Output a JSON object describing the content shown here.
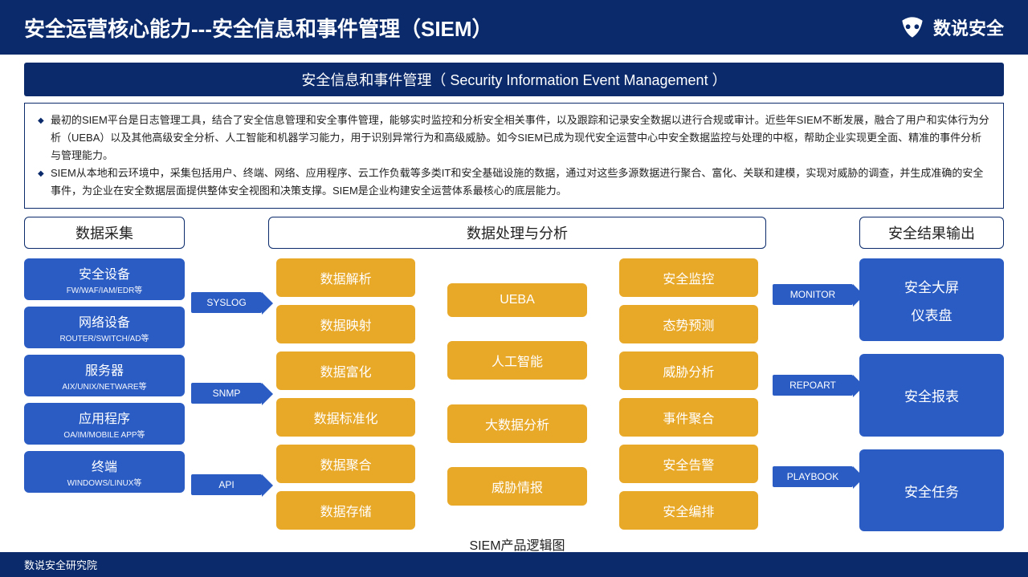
{
  "header": {
    "title": "安全运营核心能力---安全信息和事件管理（SIEM）",
    "brand": "数说安全"
  },
  "subtitle": "安全信息和事件管理（ Security Information Event Management ）",
  "desc": {
    "p1": "最初的SIEM平台是日志管理工具，结合了安全信息管理和安全事件管理，能够实时监控和分析安全相关事件，以及跟踪和记录安全数据以进行合规或审计。近些年SIEM不断发展，融合了用户和实体行为分析（UEBA）以及其他高级安全分析、人工智能和机器学习能力，用于识别异常行为和高级威胁。如今SIEM已成为现代安全运营中心中安全数据监控与处理的中枢，帮助企业实现更全面、精准的事件分析与管理能力。",
    "p2": "SIEM从本地和云环境中，采集包括用户、终端、网络、应用程序、云工作负载等多类IT和安全基础设施的数据，通过对这些多源数据进行聚合、富化、关联和建模，实现对威胁的调查，并生成准确的安全事件，为企业在安全数据层面提供整体安全视图和决策支撑。SIEM是企业构建安全运营体系最核心的底层能力。"
  },
  "sections": {
    "left": "数据采集",
    "mid": "数据处理与分析",
    "right": "安全结果输出"
  },
  "left_items": [
    {
      "t": "安全设备",
      "s": "FW/WAF/IAM/EDR等"
    },
    {
      "t": "网络设备",
      "s": "ROUTER/SWITCH/AD等"
    },
    {
      "t": "服务器",
      "s": "AIX/UNIX/NETWARE等"
    },
    {
      "t": "应用程序",
      "s": "OA/IM/MOBILE APP等"
    },
    {
      "t": "终端",
      "s": "WINDOWS/LINUX等"
    }
  ],
  "arrows1": [
    "SYSLOG",
    "SNMP",
    "API"
  ],
  "mid_col1": [
    "数据解析",
    "数据映射",
    "数据富化",
    "数据标准化",
    "数据聚合",
    "数据存储"
  ],
  "mid_col2": [
    "UEBA",
    "人工智能",
    "大数据分析",
    "威胁情报"
  ],
  "mid_col3": [
    "安全监控",
    "态势预测",
    "威胁分析",
    "事件聚合",
    "安全告警",
    "安全编排"
  ],
  "arrows2": [
    "MONITOR",
    "REPOART",
    "PLAYBOOK"
  ],
  "right_items": [
    {
      "lines": [
        "安全大屏",
        "仪表盘"
      ]
    },
    {
      "lines": [
        "安全报表"
      ]
    },
    {
      "lines": [
        "安全任务"
      ]
    }
  ],
  "caption": "SIEM产品逻辑图",
  "footer": "数说安全研究院",
  "colors": {
    "primary": "#0a2a6b",
    "blue": "#2a5cc4",
    "orange": "#e8a828",
    "bg": "#ffffff"
  }
}
